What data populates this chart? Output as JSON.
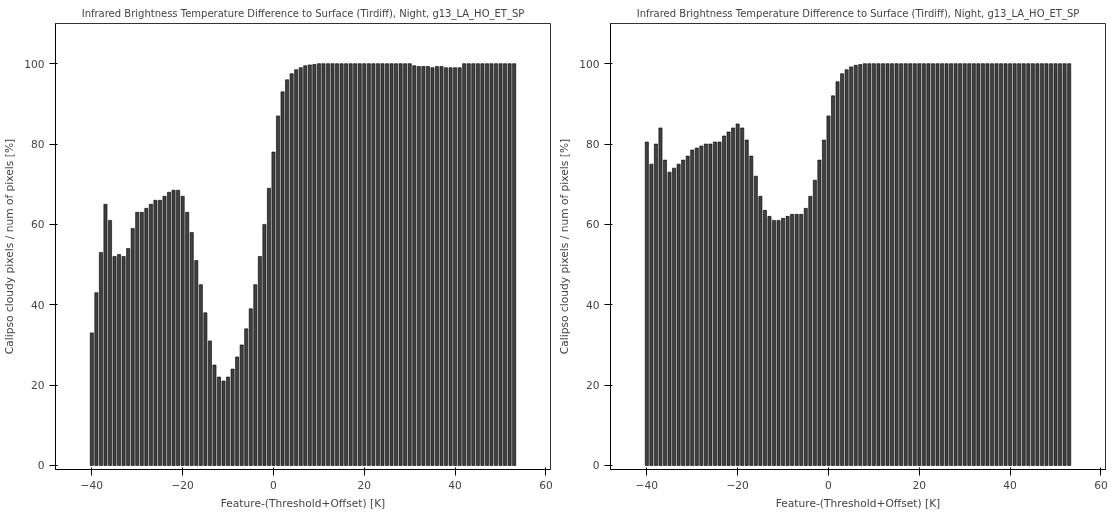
{
  "chart_data": [
    {
      "type": "bar",
      "title": "Infrared Brightness Temperature Difference to Surface (Tirdiff), Night, g13_LA_HO_ET_SP",
      "xlabel": "Feature-(Threshold+Offset) [K]",
      "ylabel": "Calipso cloudy pixels / num of pixels [%]",
      "x": [
        -40,
        -39,
        -38,
        -37,
        -36,
        -35,
        -34,
        -33,
        -32,
        -31,
        -30,
        -29,
        -28,
        -27,
        -26,
        -25,
        -24,
        -23,
        -22,
        -21,
        -20,
        -19,
        -18,
        -17,
        -16,
        -15,
        -14,
        -13,
        -12,
        -11,
        -10,
        -9,
        -8,
        -7,
        -6,
        -5,
        -4,
        -3,
        -2,
        -1,
        0,
        1,
        2,
        3,
        4,
        5,
        6,
        7,
        8,
        9,
        10,
        11,
        12,
        13,
        14,
        15,
        16,
        17,
        18,
        19,
        20,
        21,
        22,
        23,
        24,
        25,
        26,
        27,
        28,
        29,
        30,
        31,
        32,
        33,
        34,
        35,
        36,
        37,
        38,
        39,
        40,
        41,
        42,
        43,
        44,
        45,
        46,
        47,
        48,
        49,
        50,
        51,
        52,
        53
      ],
      "values": [
        33,
        43,
        53,
        65,
        61,
        52,
        52.5,
        52,
        54,
        59,
        63,
        63,
        64,
        65,
        66,
        66,
        67,
        68,
        68.5,
        68.5,
        67,
        63,
        58,
        51,
        45,
        38,
        31,
        25,
        22,
        21,
        22,
        24,
        27,
        30,
        34,
        39,
        45,
        52,
        60,
        69,
        78,
        87,
        93,
        96,
        97.5,
        98.5,
        99,
        99.5,
        99.7,
        99.8,
        100,
        100,
        100,
        100,
        100,
        100,
        100,
        100,
        100,
        100,
        100,
        100,
        100,
        100,
        100,
        100,
        100,
        100,
        100,
        100,
        100,
        99.5,
        99.3,
        99.3,
        99.3,
        99,
        99.3,
        99.3,
        99,
        99,
        99,
        99,
        100,
        100,
        100,
        100,
        100,
        100,
        100,
        100,
        100,
        100,
        100,
        100
      ],
      "color": "#404040",
      "xlim": [
        -48,
        61
      ],
      "ylim": [
        -1,
        110
      ],
      "xticks": [
        -40,
        -20,
        0,
        20,
        40,
        60
      ],
      "yticks": [
        0,
        20,
        40,
        60,
        80,
        100
      ],
      "grid": false
    },
    {
      "type": "bar",
      "title": "Infrared Brightness Temperature Difference to Surface (Tirdiff), Night, g13_LA_HO_ET_SP",
      "xlabel": "Feature-(Threshold+Offset) [K]",
      "ylabel": "Calipso cloudy pixels / num of pixels [%]",
      "x": [
        -40,
        -39,
        -38,
        -37,
        -36,
        -35,
        -34,
        -33,
        -32,
        -31,
        -30,
        -29,
        -28,
        -27,
        -26,
        -25,
        -24,
        -23,
        -22,
        -21,
        -20,
        -19,
        -18,
        -17,
        -16,
        -15,
        -14,
        -13,
        -12,
        -11,
        -10,
        -9,
        -8,
        -7,
        -6,
        -5,
        -4,
        -3,
        -2,
        -1,
        0,
        1,
        2,
        3,
        4,
        5,
        6,
        7,
        8,
        9,
        10,
        11,
        12,
        13,
        14,
        15,
        16,
        17,
        18,
        19,
        20,
        21,
        22,
        23,
        24,
        25,
        26,
        27,
        28,
        29,
        30,
        31,
        32,
        33,
        34,
        35,
        36,
        37,
        38,
        39,
        40,
        41,
        42,
        43,
        44,
        45,
        46,
        47,
        48,
        49,
        50,
        51,
        52,
        53
      ],
      "values": [
        80.5,
        75,
        80,
        84,
        76,
        73,
        74,
        75,
        76,
        77,
        78.5,
        79,
        79.5,
        80,
        80,
        80.5,
        80.5,
        82,
        83,
        84,
        85,
        84,
        81,
        77,
        72,
        67,
        63.5,
        62,
        61,
        61,
        61.5,
        62,
        62.5,
        62.5,
        62.5,
        64,
        67,
        71,
        76,
        81,
        87,
        92,
        95.5,
        97.5,
        98.5,
        99.2,
        99.6,
        99.8,
        100,
        100,
        100,
        100,
        100,
        100,
        100,
        100,
        100,
        100,
        100,
        100,
        100,
        100,
        100,
        100,
        100,
        100,
        100,
        100,
        100,
        100,
        100,
        100,
        100,
        100,
        100,
        100,
        100,
        100,
        100,
        100,
        100,
        100,
        100,
        100,
        100,
        100,
        100,
        100,
        100,
        100,
        100,
        100,
        100,
        100
      ],
      "color": "#404040",
      "xlim": [
        -48,
        61
      ],
      "ylim": [
        -1,
        110
      ],
      "xticks": [
        -40,
        -20,
        0,
        20,
        40,
        60
      ],
      "yticks": [
        0,
        20,
        40,
        60,
        80,
        100
      ],
      "grid": false
    }
  ]
}
